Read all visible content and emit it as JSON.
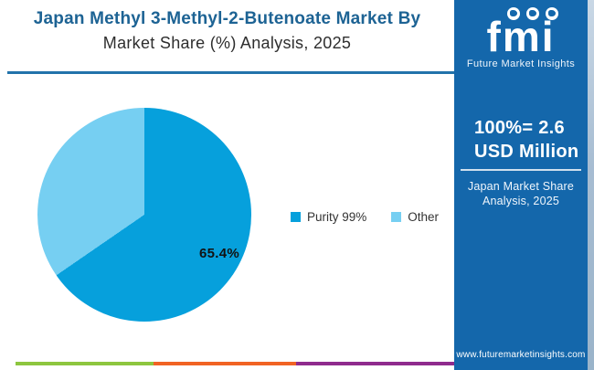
{
  "header": {
    "title_line1": "Japan Methyl 3-Methyl-2-Butenoate Market By",
    "title_line2": "Market Share (%) Analysis, 2025"
  },
  "chart_data": {
    "type": "pie",
    "title": "Japan Methyl 3-Methyl-2-Butenoate Market By Market Share (%) Analysis, 2025",
    "slices": [
      {
        "label": "Purity 99%",
        "value": 65.4,
        "color": "#06a0dc",
        "data_label": "65.4%"
      },
      {
        "label": "Other",
        "value": 34.6,
        "color": "#76cff2",
        "data_label": ""
      }
    ],
    "start_angle_deg": 0,
    "direction": "clockwise",
    "legend_position": "right-middle",
    "total_note": "100% = 2.6 USD Million"
  },
  "sidebar": {
    "logo": {
      "text": "fmi",
      "tagline": "Future Market Insights"
    },
    "stat_line1": "100%= 2.6",
    "stat_line2": "USD Million",
    "note_line1": "Japan Market Share",
    "note_line2": "Analysis, 2025",
    "website": "www.futuremarketinsights.com",
    "background": "#1467ab"
  },
  "footer": {
    "stripe_colors": [
      "#8dc63f",
      "#f16324",
      "#8f2b8d"
    ]
  },
  "colors": {
    "title_blue": "#1d6394",
    "divider_blue": "#2273ab",
    "sidebar_blue": "#1467ab"
  }
}
